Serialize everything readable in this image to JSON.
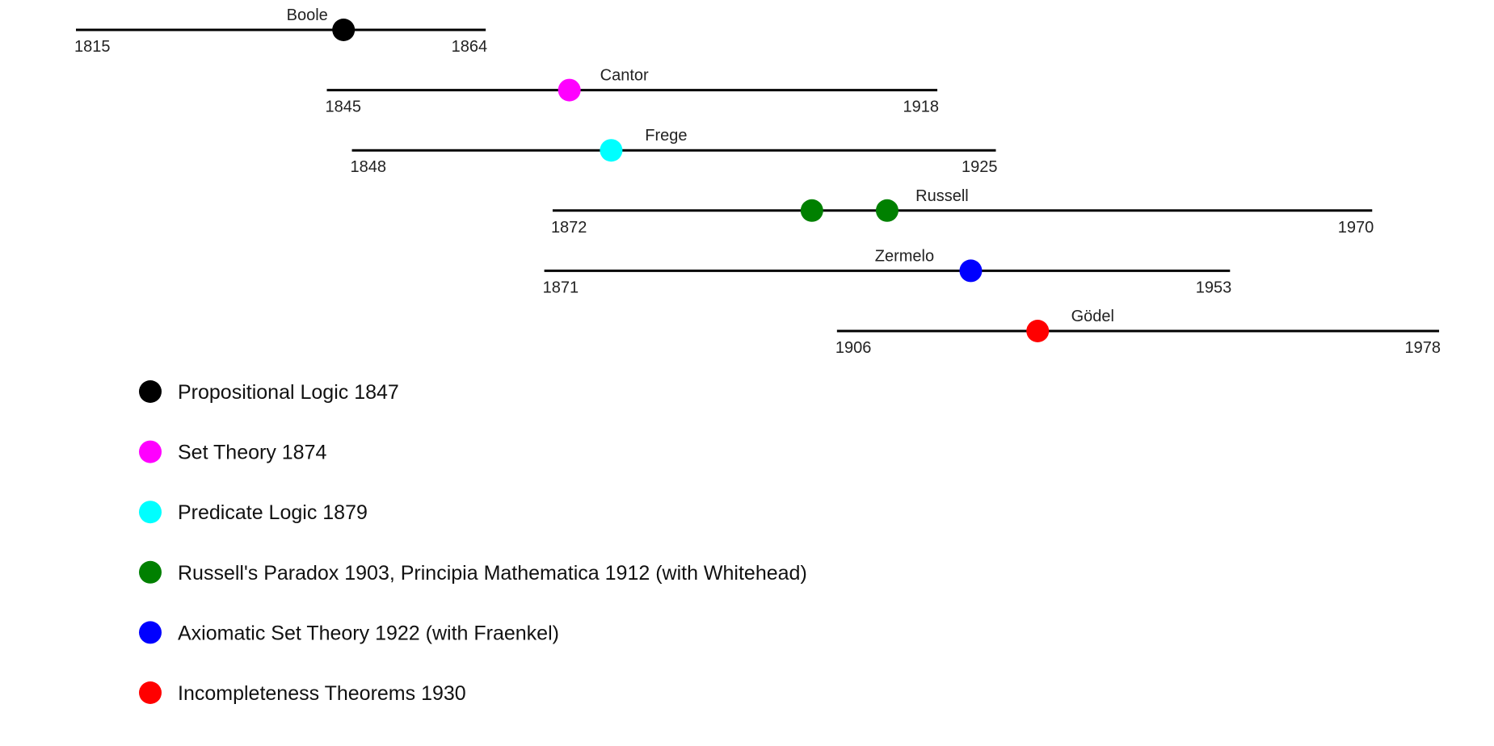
{
  "colors": {
    "black": "#000000",
    "magenta": "#ff00ff",
    "cyan": "#00ffff",
    "green": "#008000",
    "blue": "#0000ff",
    "red": "#ff0000"
  },
  "people": [
    {
      "name": "Boole",
      "born": 1815,
      "died": 1864,
      "born_label": "1815",
      "died_label": "1864",
      "events": [
        {
          "year": 1847,
          "color": "#000000"
        }
      ]
    },
    {
      "name": "Cantor",
      "born": 1845,
      "died": 1918,
      "born_label": "1845",
      "died_label": "1918",
      "events": [
        {
          "year": 1874,
          "color": "#ff00ff"
        }
      ]
    },
    {
      "name": "Frege",
      "born": 1848,
      "died": 1925,
      "born_label": "1848",
      "died_label": "1925",
      "events": [
        {
          "year": 1879,
          "color": "#00ffff"
        }
      ]
    },
    {
      "name": "Russell",
      "born": 1872,
      "died": 1970,
      "born_label": "1872",
      "died_label": "1970",
      "events": [
        {
          "year": 1903,
          "color": "#008000"
        },
        {
          "year": 1912,
          "color": "#008000"
        }
      ]
    },
    {
      "name": "Zermelo",
      "born": 1871,
      "died": 1953,
      "born_label": "1871",
      "died_label": "1953",
      "events": [
        {
          "year": 1922,
          "color": "#0000ff"
        }
      ]
    },
    {
      "name": "Gödel",
      "born": 1906,
      "died": 1978,
      "born_label": "1906",
      "died_label": "1978",
      "events": [
        {
          "year": 1930,
          "color": "#ff0000"
        }
      ]
    }
  ],
  "legend": [
    {
      "color": "#000000",
      "label": "Propositional Logic 1847"
    },
    {
      "color": "#ff00ff",
      "label": "Set Theory 1874"
    },
    {
      "color": "#00ffff",
      "label": "Predicate Logic 1879"
    },
    {
      "color": "#008000",
      "label": "Russell's Paradox 1903, Principia Mathematica 1912 (with Whitehead)"
    },
    {
      "color": "#0000ff",
      "label": "Axiomatic Set Theory 1922 (with Fraenkel)"
    },
    {
      "color": "#ff0000",
      "label": "Incompleteness Theorems 1930"
    }
  ]
}
